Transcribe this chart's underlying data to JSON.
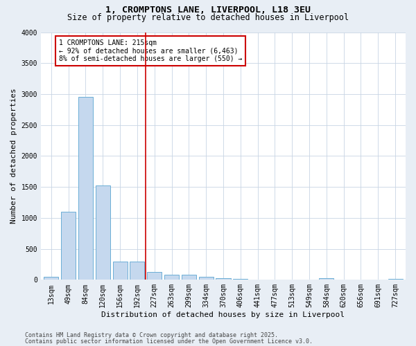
{
  "title": "1, CROMPTONS LANE, LIVERPOOL, L18 3EU",
  "subtitle": "Size of property relative to detached houses in Liverpool",
  "xlabel": "Distribution of detached houses by size in Liverpool",
  "ylabel": "Number of detached properties",
  "categories": [
    "13sqm",
    "49sqm",
    "84sqm",
    "120sqm",
    "156sqm",
    "192sqm",
    "227sqm",
    "263sqm",
    "299sqm",
    "334sqm",
    "370sqm",
    "406sqm",
    "441sqm",
    "477sqm",
    "513sqm",
    "549sqm",
    "584sqm",
    "620sqm",
    "656sqm",
    "691sqm",
    "727sqm"
  ],
  "values": [
    50,
    1100,
    2950,
    1520,
    290,
    290,
    130,
    80,
    80,
    50,
    30,
    10,
    5,
    0,
    0,
    0,
    30,
    0,
    0,
    0,
    10
  ],
  "bar_color": "#c5d8ee",
  "bar_edge_color": "#6baed6",
  "vline_color": "#cc0000",
  "annotation_text": "1 CROMPTONS LANE: 215sqm\n← 92% of detached houses are smaller (6,463)\n8% of semi-detached houses are larger (550) →",
  "annotation_box_edgecolor": "#cc0000",
  "ylim": [
    0,
    4000
  ],
  "yticks": [
    0,
    500,
    1000,
    1500,
    2000,
    2500,
    3000,
    3500,
    4000
  ],
  "footer_line1": "Contains HM Land Registry data © Crown copyright and database right 2025.",
  "footer_line2": "Contains public sector information licensed under the Open Government Licence v3.0.",
  "bg_color": "#e8eef5",
  "plot_bg_color": "#ffffff",
  "grid_color": "#c8d4e4",
  "title_fontsize": 9.5,
  "subtitle_fontsize": 8.5,
  "label_fontsize": 8,
  "tick_fontsize": 7,
  "annotation_fontsize": 7,
  "footer_fontsize": 6
}
